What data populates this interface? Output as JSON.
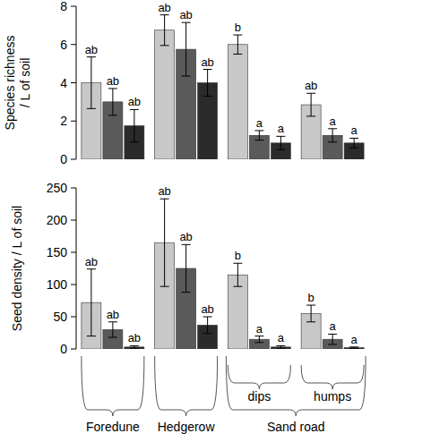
{
  "chart_data": [
    {
      "type": "bar",
      "y_label": [
        "Species richness",
        "/ L of soil"
      ],
      "categories": [
        null,
        null,
        null,
        null
      ],
      "ylim": [
        0,
        8
      ],
      "yticks": [
        0,
        2,
        4,
        6,
        8
      ],
      "series": [
        {
          "color": "#c8c8c8",
          "values": [
            4.0,
            6.75,
            6.0,
            2.85
          ],
          "errors": [
            1.35,
            0.8,
            0.5,
            0.6
          ],
          "letters": [
            "ab",
            "ab",
            "b",
            "ab"
          ]
        },
        {
          "color": "#5a5a5a",
          "values": [
            3.0,
            5.75,
            1.25,
            1.25
          ],
          "errors": [
            0.7,
            1.4,
            0.25,
            0.35
          ],
          "letters": [
            "ab",
            "ab",
            "a",
            "a"
          ]
        },
        {
          "color": "#2b2b2b",
          "values": [
            1.75,
            4.0,
            0.85,
            0.85
          ],
          "errors": [
            0.85,
            0.7,
            0.35,
            0.25
          ],
          "letters": [
            "ab",
            "ab",
            "a",
            "a"
          ]
        }
      ]
    },
    {
      "type": "bar",
      "y_label": [
        "Seed density / L of soil"
      ],
      "categories": [
        "Foredune",
        "Hedgerow",
        "dips",
        "humps"
      ],
      "category_groups": [
        {
          "label": "Sand road",
          "categories": [
            "dips",
            "humps"
          ]
        }
      ],
      "ylim": [
        0,
        250
      ],
      "yticks": [
        0,
        50,
        100,
        150,
        200,
        250
      ],
      "series": [
        {
          "color": "#c8c8c8",
          "values": [
            72,
            165,
            115,
            55
          ],
          "errors": [
            52,
            68,
            18,
            13
          ],
          "letters": [
            "ab",
            "ab",
            "b",
            "b"
          ]
        },
        {
          "color": "#5a5a5a",
          "values": [
            30,
            125,
            15,
            15
          ],
          "errors": [
            12,
            37,
            5,
            8
          ],
          "letters": [
            "ab",
            "ab",
            "a",
            "a"
          ]
        },
        {
          "color": "#2b2b2b",
          "values": [
            3,
            37,
            3,
            2
          ],
          "errors": [
            2,
            13,
            2,
            1
          ],
          "letters": [
            "ab",
            "ab",
            "a",
            "a"
          ]
        }
      ]
    }
  ]
}
